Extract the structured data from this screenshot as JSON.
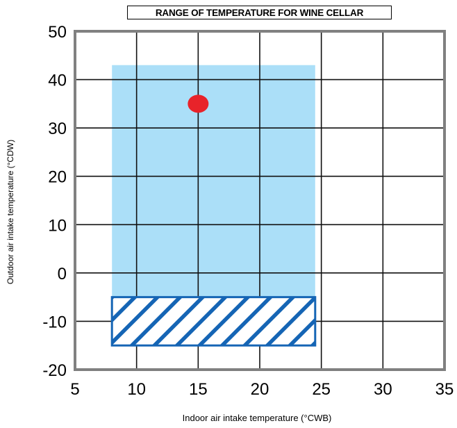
{
  "chart_data": {
    "type": "area",
    "title": "RANGE OF TEMPERATURE FOR WINE CELLAR",
    "xlabel": "Indoor air intake temperature (°CWB)",
    "ylabel": "Outdoor air intake temperature (°CDW)",
    "xlim": [
      5,
      35
    ],
    "ylim": [
      -20,
      50
    ],
    "xticks": [
      5,
      10,
      15,
      20,
      25,
      30,
      35
    ],
    "yticks": [
      50,
      40,
      30,
      20,
      10,
      0,
      -10,
      -20
    ],
    "grid": true,
    "regions": [
      {
        "kind": "operating-range",
        "x": [
          8,
          24.5
        ],
        "y": [
          -5,
          43
        ],
        "color": "#abdff8"
      },
      {
        "kind": "hatched-range",
        "x": [
          8,
          24.5
        ],
        "y": [
          -15,
          -5
        ],
        "color": "#1565b5"
      }
    ],
    "points": [
      {
        "x": 15,
        "y": 35,
        "color": "#e8232a"
      }
    ],
    "colors": {
      "frame": "#808080",
      "grid": "#111111"
    }
  }
}
